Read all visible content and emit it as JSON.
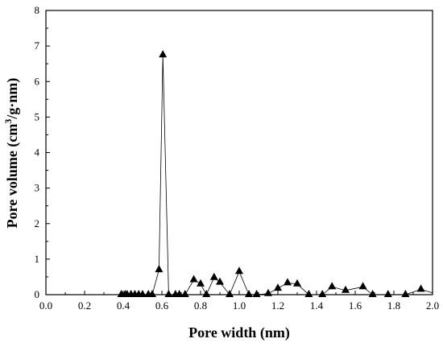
{
  "chart_data": {
    "type": "line",
    "xlabel": "Pore width (nm)",
    "ylabel": "Pore volume (cm3/g·nm)",
    "ylabel_parts": {
      "before": "Pore volume (cm",
      "sup": "3",
      "after": "/g·nm)"
    },
    "xlim": [
      0.0,
      2.0
    ],
    "ylim": [
      0,
      8
    ],
    "x_ticks": [
      "0.0",
      "0.2",
      "0.4",
      "0.6",
      "0.8",
      "1.0",
      "1.2",
      "1.4",
      "1.6",
      "1.8",
      "2.0"
    ],
    "y_ticks": [
      "0",
      "1",
      "2",
      "3",
      "4",
      "5",
      "6",
      "7",
      "8"
    ],
    "grid": false,
    "series": [
      {
        "marker": "triangle",
        "color": "#000000",
        "x": [
          0.0,
          0.39,
          0.41,
          0.42,
          0.44,
          0.46,
          0.48,
          0.5,
          0.53,
          0.55,
          0.585,
          0.605,
          0.635,
          0.67,
          0.69,
          0.72,
          0.765,
          0.8,
          0.83,
          0.87,
          0.9,
          0.95,
          1.0,
          1.05,
          1.09,
          1.15,
          1.2,
          1.25,
          1.3,
          1.36,
          1.43,
          1.48,
          1.55,
          1.64,
          1.69,
          1.77,
          1.86,
          1.94,
          2.0
        ],
        "y": [
          0.0,
          0.0,
          0.0,
          0.0,
          0.0,
          0.0,
          0.0,
          0.0,
          0.0,
          0.0,
          0.7,
          6.75,
          0.0,
          0.0,
          0.0,
          0.0,
          0.42,
          0.3,
          0.0,
          0.48,
          0.35,
          0.0,
          0.65,
          0.0,
          0.0,
          0.03,
          0.18,
          0.33,
          0.3,
          0.0,
          0.0,
          0.22,
          0.12,
          0.22,
          0.0,
          0.0,
          0.0,
          0.15,
          0.05
        ]
      }
    ]
  }
}
